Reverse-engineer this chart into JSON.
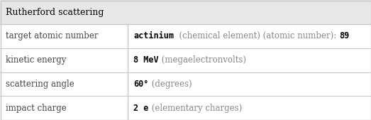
{
  "title": "Rutherford scattering",
  "title_bg": "#e8e8e8",
  "row_bg": "#ffffff",
  "border_color": "#c8c8c8",
  "rows": [
    {
      "label": "target atomic number",
      "value_parts": [
        {
          "text": "actinium",
          "bold": true,
          "color": "#000000"
        },
        {
          "text": "  (chemical element) (atomic number): ",
          "bold": false,
          "color": "#888888"
        },
        {
          "text": "89",
          "bold": true,
          "color": "#000000"
        }
      ]
    },
    {
      "label": "kinetic energy",
      "value_parts": [
        {
          "text": "8 MeV",
          "bold": true,
          "color": "#000000"
        },
        {
          "text": " (megaelectronvolts)",
          "bold": false,
          "color": "#888888"
        }
      ]
    },
    {
      "label": "scattering angle",
      "value_parts": [
        {
          "text": "60°",
          "bold": true,
          "color": "#000000"
        },
        {
          "text": " (degrees)",
          "bold": false,
          "color": "#888888"
        }
      ]
    },
    {
      "label": "impact charge",
      "value_parts": [
        {
          "text": "2 e",
          "bold": true,
          "color": "#000000"
        },
        {
          "text": " (elementary charges)",
          "bold": false,
          "color": "#888888"
        }
      ]
    }
  ],
  "col_split": 0.345,
  "title_fontsize": 9.0,
  "label_fontsize": 8.5,
  "value_fontsize": 8.5
}
